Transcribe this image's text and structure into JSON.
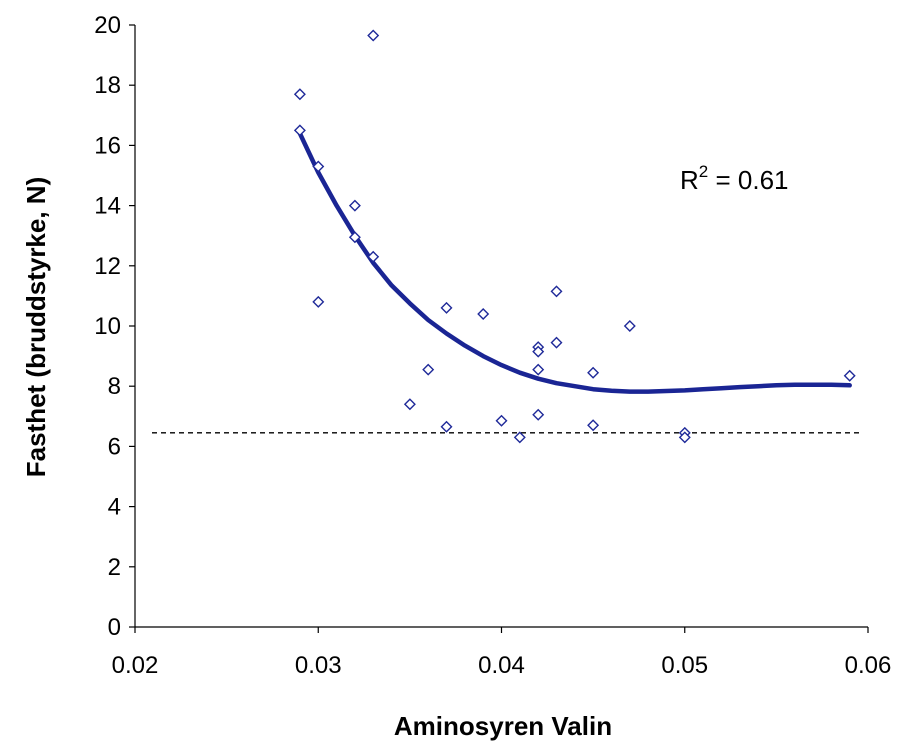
{
  "chart_data": {
    "type": "scatter",
    "xlabel": "Aminosyren Valin",
    "ylabel": "Fasthet (bruddstyrke, N)",
    "xlim": [
      0.02,
      0.06
    ],
    "ylim": [
      0,
      20
    ],
    "xticks": [
      "0.02",
      "0.03",
      "0.04",
      "0.05",
      "0.06"
    ],
    "yticks": [
      "0",
      "2",
      "4",
      "6",
      "8",
      "10",
      "12",
      "14",
      "16",
      "18",
      "20"
    ],
    "grid": false,
    "legend": "none",
    "points": [
      {
        "x": 0.029,
        "y": 17.7
      },
      {
        "x": 0.029,
        "y": 16.5
      },
      {
        "x": 0.03,
        "y": 15.3
      },
      {
        "x": 0.03,
        "y": 10.8
      },
      {
        "x": 0.032,
        "y": 14.0
      },
      {
        "x": 0.032,
        "y": 12.95
      },
      {
        "x": 0.033,
        "y": 19.65
      },
      {
        "x": 0.033,
        "y": 12.3
      },
      {
        "x": 0.035,
        "y": 7.4
      },
      {
        "x": 0.036,
        "y": 8.55
      },
      {
        "x": 0.037,
        "y": 10.6
      },
      {
        "x": 0.037,
        "y": 6.65
      },
      {
        "x": 0.039,
        "y": 10.4
      },
      {
        "x": 0.04,
        "y": 6.85
      },
      {
        "x": 0.041,
        "y": 6.3
      },
      {
        "x": 0.042,
        "y": 9.3
      },
      {
        "x": 0.042,
        "y": 9.15
      },
      {
        "x": 0.042,
        "y": 8.55
      },
      {
        "x": 0.042,
        "y": 7.05
      },
      {
        "x": 0.043,
        "y": 11.15
      },
      {
        "x": 0.043,
        "y": 9.45
      },
      {
        "x": 0.045,
        "y": 8.45
      },
      {
        "x": 0.045,
        "y": 6.7
      },
      {
        "x": 0.047,
        "y": 10.0
      },
      {
        "x": 0.05,
        "y": 6.45
      },
      {
        "x": 0.05,
        "y": 6.3
      },
      {
        "x": 0.059,
        "y": 8.35
      }
    ],
    "trendline": {
      "type": "polynomial",
      "x": [
        0.029,
        0.03,
        0.031,
        0.032,
        0.033,
        0.034,
        0.035,
        0.036,
        0.037,
        0.038,
        0.039,
        0.04,
        0.041,
        0.042,
        0.043,
        0.044,
        0.045,
        0.046,
        0.047,
        0.048,
        0.049,
        0.05,
        0.051,
        0.052,
        0.053,
        0.054,
        0.055,
        0.056,
        0.057,
        0.058,
        0.059
      ],
      "y": [
        16.4,
        15.1,
        14.0,
        13.0,
        12.1,
        11.35,
        10.75,
        10.2,
        9.75,
        9.35,
        9.0,
        8.7,
        8.45,
        8.25,
        8.1,
        8.0,
        7.9,
        7.85,
        7.82,
        7.82,
        7.84,
        7.86,
        7.9,
        7.93,
        7.97,
        8.0,
        8.03,
        8.05,
        8.05,
        8.05,
        8.03
      ]
    },
    "reference_line": {
      "y": 6.45,
      "style": "dashed"
    },
    "annotation": {
      "text_base": "R",
      "text_sup": "2",
      "text_rest": " = 0.61"
    },
    "colors": {
      "marker": "#1f2a99",
      "trendline": "#1a2594",
      "reference": "#000000",
      "axis": "#000000"
    }
  }
}
